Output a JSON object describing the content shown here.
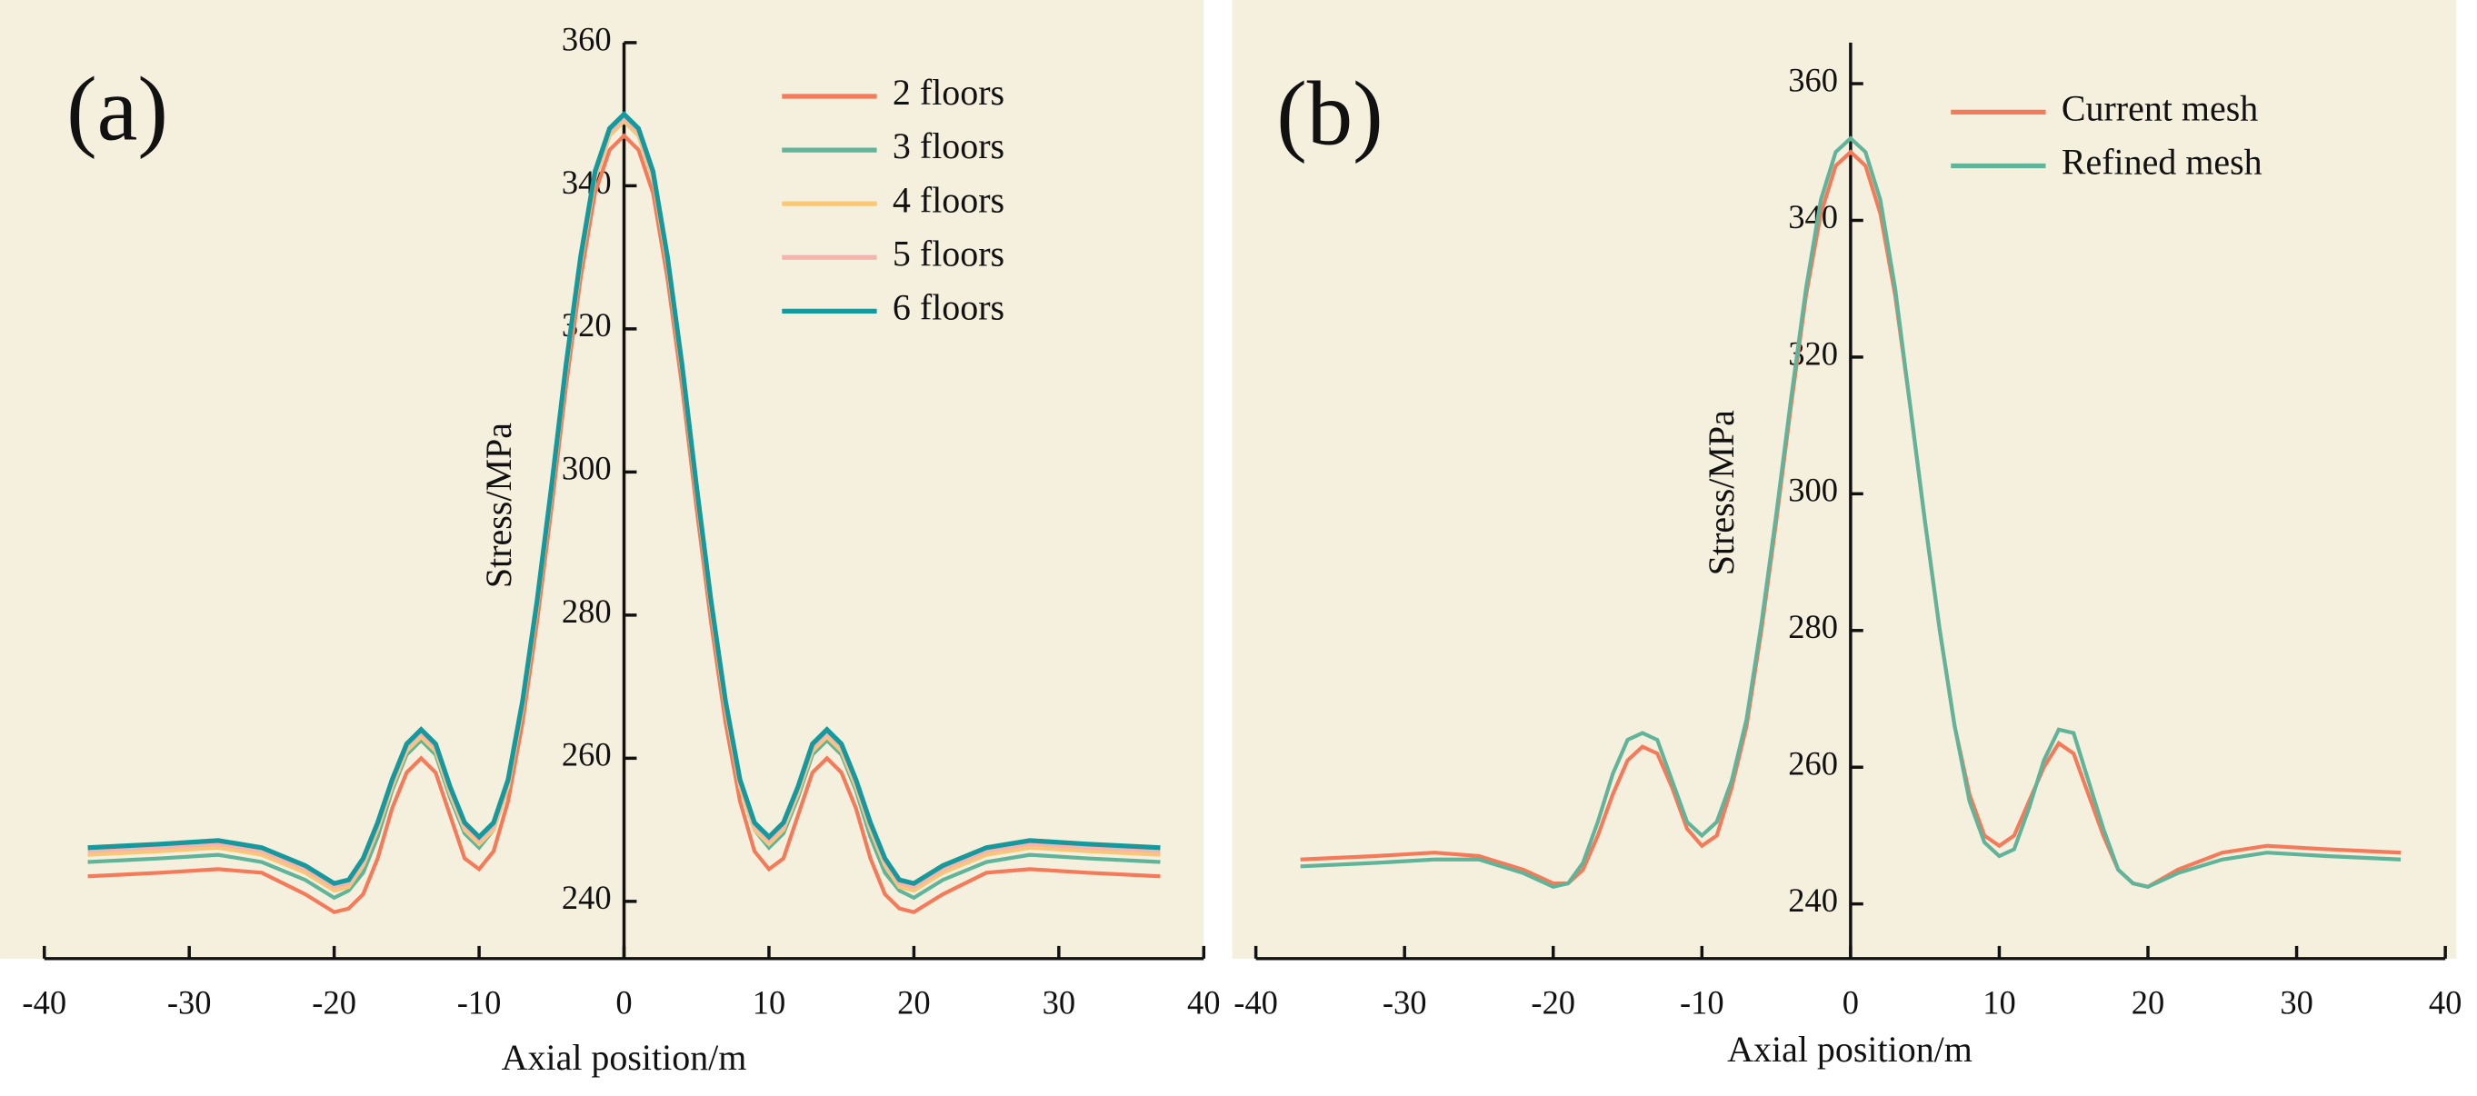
{
  "chart_data": [
    {
      "type": "line",
      "annotation": "(a)",
      "xlabel": "Axial position/m",
      "ylabel": "Stress/MPa",
      "x": [
        -37,
        -32,
        -28,
        -25,
        -22,
        -20,
        -19,
        -18,
        -17,
        -16,
        -15,
        -14,
        -13,
        -12,
        -11,
        -10,
        -9,
        -8,
        -7,
        -6,
        -5,
        -4,
        -3,
        -2,
        -1,
        0,
        1,
        2,
        3,
        4,
        5,
        6,
        7,
        8,
        9,
        10,
        11,
        12,
        13,
        14,
        15,
        16,
        17,
        18,
        19,
        20,
        22,
        25,
        28,
        32,
        37
      ],
      "series": [
        {
          "name": "2 floors",
          "color": "#f47a5a",
          "values": [
            243.5,
            244,
            244.5,
            244,
            241,
            238.5,
            239,
            241,
            246,
            253,
            258,
            260,
            258,
            252,
            246,
            244.5,
            247,
            254,
            265,
            279,
            295,
            312,
            327,
            339,
            345,
            347,
            345,
            339,
            327,
            312,
            295,
            279,
            265,
            254,
            247,
            244.5,
            246,
            252,
            258,
            260,
            258,
            253,
            246,
            241,
            239,
            238.5,
            241,
            244,
            244.5,
            244,
            243.5
          ]
        },
        {
          "name": "3 floors",
          "color": "#5fb49a",
          "values": [
            245.5,
            246,
            246.5,
            245.5,
            243,
            240.5,
            241.5,
            244,
            249,
            255.5,
            260.5,
            262.5,
            260.5,
            254.5,
            249.5,
            247.5,
            250,
            256,
            267,
            281,
            297,
            314,
            329,
            341,
            347,
            349,
            347,
            341,
            329,
            314,
            297,
            281,
            267,
            256,
            250,
            247.5,
            249.5,
            254.5,
            260.5,
            262.5,
            260.5,
            255.5,
            249,
            244,
            241.5,
            240.5,
            243,
            245.5,
            246.5,
            246,
            245.5
          ]
        },
        {
          "name": "4 floors",
          "color": "#f8c878",
          "values": [
            246.5,
            247,
            247.5,
            246.5,
            244,
            241.5,
            242,
            245,
            250,
            256,
            261,
            263,
            261,
            255,
            250,
            248,
            250,
            256,
            267,
            281,
            297,
            314,
            329,
            341,
            347,
            349,
            347,
            341,
            329,
            314,
            297,
            281,
            267,
            256,
            250,
            248,
            250,
            255,
            261,
            263,
            261,
            256,
            250,
            245,
            242,
            241.5,
            244,
            246.5,
            247.5,
            247,
            246.5
          ]
        },
        {
          "name": "5 floors",
          "color": "#f7b3ae",
          "values": [
            247,
            247.5,
            248,
            247,
            244.5,
            242,
            242.5,
            245.5,
            250.5,
            256.5,
            261.5,
            263.5,
            261.5,
            255.5,
            250.5,
            248.5,
            250.5,
            256.5,
            267.5,
            281.5,
            297.5,
            314.5,
            329.5,
            341.5,
            347.5,
            349.5,
            347.5,
            341.5,
            329.5,
            314.5,
            297.5,
            281.5,
            267.5,
            256.5,
            250.5,
            248.5,
            250.5,
            255.5,
            261.5,
            263.5,
            261.5,
            256.5,
            250.5,
            245.5,
            242.5,
            242,
            244.5,
            247,
            248,
            247.5,
            247
          ]
        },
        {
          "name": "6 floors",
          "color": "#16999c",
          "values": [
            247.5,
            248,
            248.5,
            247.5,
            245,
            242.5,
            243,
            246,
            251,
            257,
            262,
            264,
            262,
            256,
            251,
            249,
            251,
            257,
            268,
            282,
            298,
            315,
            330,
            342,
            348,
            350,
            348,
            342,
            330,
            315,
            298,
            282,
            268,
            257,
            251,
            249,
            251,
            256,
            262,
            264,
            262,
            257,
            251,
            246,
            243,
            242.5,
            245,
            247.5,
            248.5,
            248,
            247.5
          ]
        }
      ],
      "xlim": [
        -40,
        40
      ],
      "xticks": [
        -40,
        -30,
        -20,
        -10,
        0,
        10,
        20,
        30,
        40
      ],
      "ylim": [
        232,
        360
      ],
      "yticks": [
        240,
        260,
        280,
        300,
        320,
        340,
        360
      ]
    },
    {
      "type": "line",
      "annotation": "(b)",
      "xlabel": "Axial position/m",
      "ylabel": "Stress/MPa",
      "x": [
        -37,
        -32,
        -28,
        -25,
        -22,
        -20,
        -19,
        -18,
        -17,
        -16,
        -15,
        -14,
        -13,
        -12,
        -11,
        -10,
        -9,
        -8,
        -7,
        -6,
        -5,
        -4,
        -3,
        -2,
        -1,
        0,
        1,
        2,
        3,
        4,
        5,
        6,
        7,
        8,
        9,
        10,
        11,
        12,
        13,
        14,
        15,
        16,
        17,
        18,
        19,
        20,
        22,
        25,
        28,
        32,
        37
      ],
      "series": [
        {
          "name": "Current mesh",
          "color": "#f47a5a",
          "values": [
            246.5,
            247,
            247.5,
            247,
            245,
            243,
            243,
            245,
            250,
            256,
            261,
            263,
            262,
            257,
            251,
            248.5,
            250,
            257,
            266,
            280,
            296,
            313,
            329,
            341,
            348,
            350,
            348,
            341,
            329,
            313,
            296,
            280,
            266,
            256,
            250,
            248.5,
            250,
            255,
            260,
            263.5,
            262,
            256,
            250,
            245,
            243,
            242.5,
            245,
            247.5,
            248.5,
            248,
            247.5
          ]
        },
        {
          "name": "Refined mesh",
          "color": "#5fb49a",
          "values": [
            245.5,
            246,
            246.5,
            246.5,
            244.5,
            242.5,
            243,
            246,
            252,
            259,
            264,
            265,
            264,
            258,
            252,
            250,
            252,
            258,
            267,
            281,
            297,
            314,
            330,
            343,
            350,
            352,
            350,
            343,
            330,
            313,
            296,
            280,
            266,
            255,
            249,
            247,
            248,
            254,
            261,
            265.5,
            265,
            258,
            251,
            245,
            243,
            242.5,
            244.5,
            246.5,
            247.5,
            247,
            246.5
          ]
        }
      ],
      "xlim": [
        -40,
        40
      ],
      "xticks": [
        -40,
        -30,
        -20,
        -10,
        0,
        10,
        20,
        30,
        40
      ],
      "ylim": [
        232,
        366
      ],
      "yticks": [
        240,
        260,
        280,
        300,
        320,
        340,
        360
      ]
    }
  ]
}
